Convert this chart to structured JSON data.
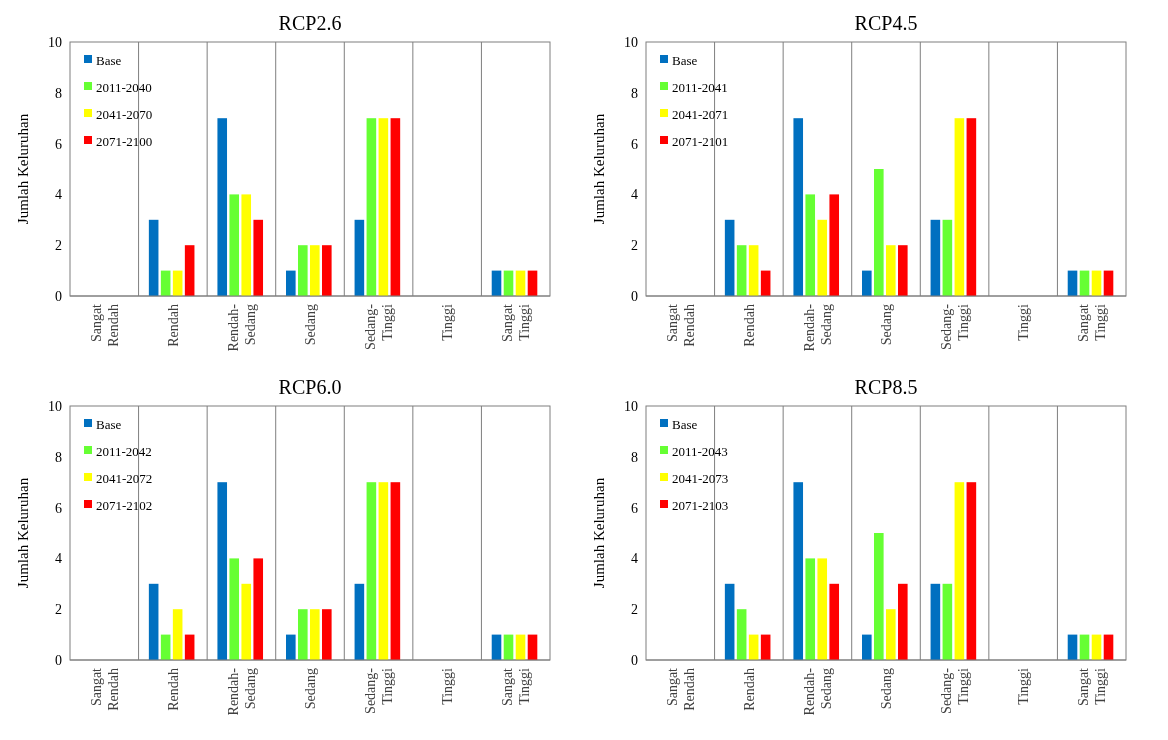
{
  "chart_data": [
    {
      "type": "bar",
      "title": "RCP2.6",
      "ylabel": "Jumlah Keluruhan",
      "categories": [
        "Sangat Rendah",
        "Rendah",
        "Rendah-Sedang",
        "Sedang",
        "Sedang-Tinggi",
        "Tinggi",
        "Sangat Tinggi"
      ],
      "ylim": [
        0,
        10
      ],
      "yticks": [
        0,
        2,
        4,
        6,
        8,
        10
      ],
      "grid": "x",
      "legend": "top left",
      "series": [
        {
          "name": "Base",
          "color": "#0070c0",
          "values": [
            0,
            3,
            7,
            1,
            3,
            0,
            1
          ]
        },
        {
          "name": "2011-2040",
          "color": "#66ff33",
          "values": [
            0,
            1,
            4,
            2,
            7,
            0,
            1
          ]
        },
        {
          "name": "2041-2070",
          "color": "#ffff00",
          "values": [
            0,
            1,
            4,
            2,
            7,
            0,
            1
          ]
        },
        {
          "name": "2071-2100",
          "color": "#ff0000",
          "values": [
            0,
            2,
            3,
            2,
            7,
            0,
            1
          ]
        }
      ]
    },
    {
      "type": "bar",
      "title": "RCP4.5",
      "ylabel": "Jumlah Keluruhan",
      "categories": [
        "Sangat Rendah",
        "Rendah",
        "Rendah-Sedang",
        "Sedang",
        "Sedang-Tinggi",
        "Tinggi",
        "Sangat Tinggi"
      ],
      "ylim": [
        0,
        10
      ],
      "yticks": [
        0,
        2,
        4,
        6,
        8,
        10
      ],
      "grid": "x",
      "legend": "top left",
      "series": [
        {
          "name": "Base",
          "color": "#0070c0",
          "values": [
            0,
            3,
            7,
            1,
            3,
            0,
            1
          ]
        },
        {
          "name": "2011-2041",
          "color": "#66ff33",
          "values": [
            0,
            2,
            4,
            5,
            3,
            0,
            1
          ]
        },
        {
          "name": "2041-2071",
          "color": "#ffff00",
          "values": [
            0,
            2,
            3,
            2,
            7,
            0,
            1
          ]
        },
        {
          "name": "2071-2101",
          "color": "#ff0000",
          "values": [
            0,
            1,
            4,
            2,
            7,
            0,
            1
          ]
        }
      ]
    },
    {
      "type": "bar",
      "title": "RCP6.0",
      "ylabel": "Jumlah Keluruhan",
      "categories": [
        "Sangat Rendah",
        "Rendah",
        "Rendah-Sedang",
        "Sedang",
        "Sedang-Tinggi",
        "Tinggi",
        "Sangat Tinggi"
      ],
      "ylim": [
        0,
        10
      ],
      "yticks": [
        0,
        2,
        4,
        6,
        8,
        10
      ],
      "grid": "x",
      "legend": "top left",
      "series": [
        {
          "name": "Base",
          "color": "#0070c0",
          "values": [
            0,
            3,
            7,
            1,
            3,
            0,
            1
          ]
        },
        {
          "name": "2011-2042",
          "color": "#66ff33",
          "values": [
            0,
            1,
            4,
            2,
            7,
            0,
            1
          ]
        },
        {
          "name": "2041-2072",
          "color": "#ffff00",
          "values": [
            0,
            2,
            3,
            2,
            7,
            0,
            1
          ]
        },
        {
          "name": "2071-2102",
          "color": "#ff0000",
          "values": [
            0,
            1,
            4,
            2,
            7,
            0,
            1
          ]
        }
      ]
    },
    {
      "type": "bar",
      "title": "RCP8.5",
      "ylabel": "Jumlah Keluruhan",
      "categories": [
        "Sangat Rendah",
        "Rendah",
        "Rendah-Sedang",
        "Sedang",
        "Sedang-Tinggi",
        "Tinggi",
        "Sangat Tinggi"
      ],
      "ylim": [
        0,
        10
      ],
      "yticks": [
        0,
        2,
        4,
        6,
        8,
        10
      ],
      "grid": "x",
      "legend": "top left",
      "series": [
        {
          "name": "Base",
          "color": "#0070c0",
          "values": [
            0,
            3,
            7,
            1,
            3,
            0,
            1
          ]
        },
        {
          "name": "2011-2043",
          "color": "#66ff33",
          "values": [
            0,
            2,
            4,
            5,
            3,
            0,
            1
          ]
        },
        {
          "name": "2041-2073",
          "color": "#ffff00",
          "values": [
            0,
            1,
            4,
            2,
            7,
            0,
            1
          ]
        },
        {
          "name": "2071-2103",
          "color": "#ff0000",
          "values": [
            0,
            1,
            3,
            3,
            7,
            0,
            1
          ]
        }
      ]
    }
  ]
}
